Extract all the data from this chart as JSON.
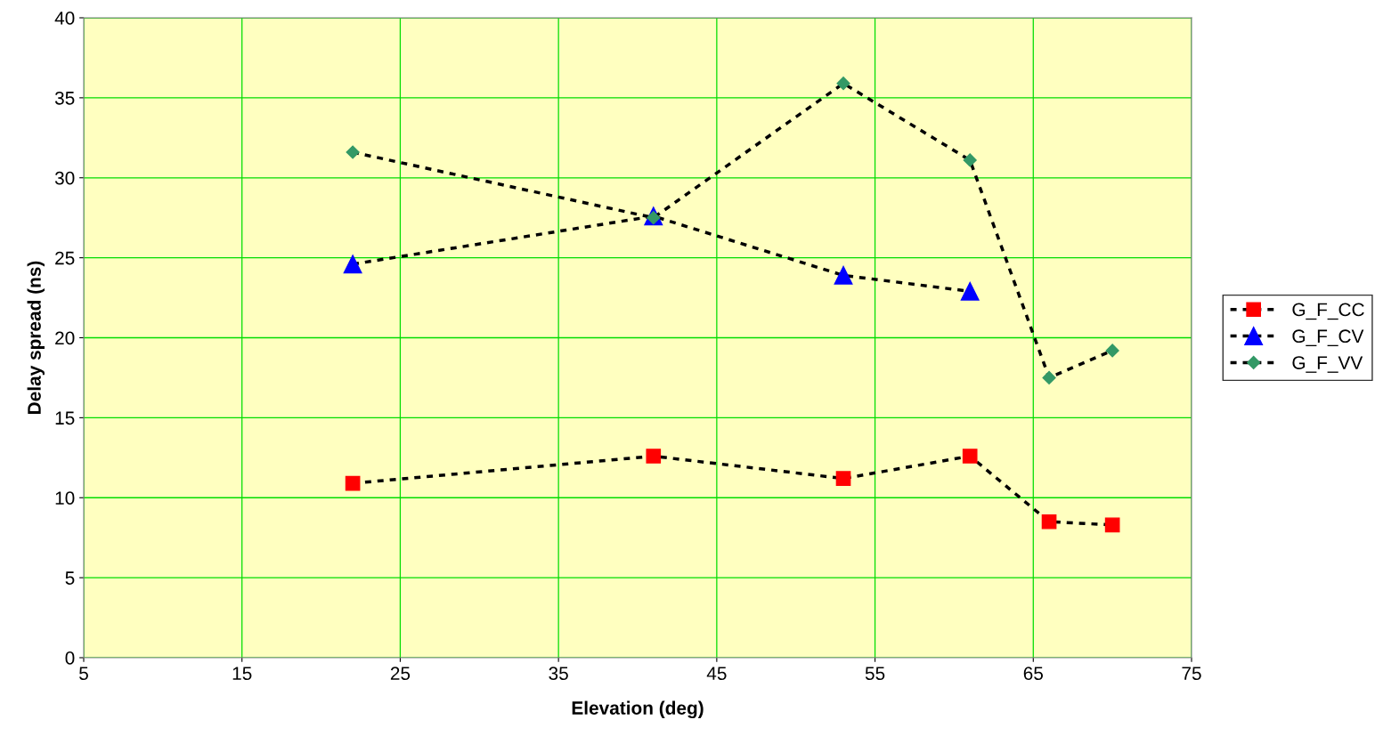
{
  "chart_data": {
    "type": "line",
    "xlabel": "Elevation (deg)",
    "ylabel": "Delay spread (ns)",
    "x": [
      22,
      41,
      53,
      61,
      66,
      70
    ],
    "series": [
      {
        "name": "G_F_CC",
        "color": "#ff0000",
        "marker": "square",
        "values": [
          10.9,
          12.6,
          11.2,
          12.6,
          8.5,
          8.3
        ]
      },
      {
        "name": "G_F_CV",
        "color": "#0000ff",
        "marker": "triangle",
        "values": [
          24.6,
          27.6,
          23.9,
          22.9,
          null,
          null
        ]
      },
      {
        "name": "G_F_VV",
        "color": "#339966",
        "marker": "diamond",
        "values": [
          31.6,
          27.5,
          35.9,
          31.1,
          17.5,
          19.2
        ]
      }
    ],
    "xlim": [
      5,
      75
    ],
    "xticks": [
      5,
      15,
      25,
      35,
      45,
      55,
      65,
      75
    ],
    "ylim": [
      0,
      40
    ],
    "yticks": [
      0,
      5,
      10,
      15,
      20,
      25,
      30,
      35,
      40
    ],
    "grid": true,
    "legend": "right",
    "line_style": "dotted"
  }
}
